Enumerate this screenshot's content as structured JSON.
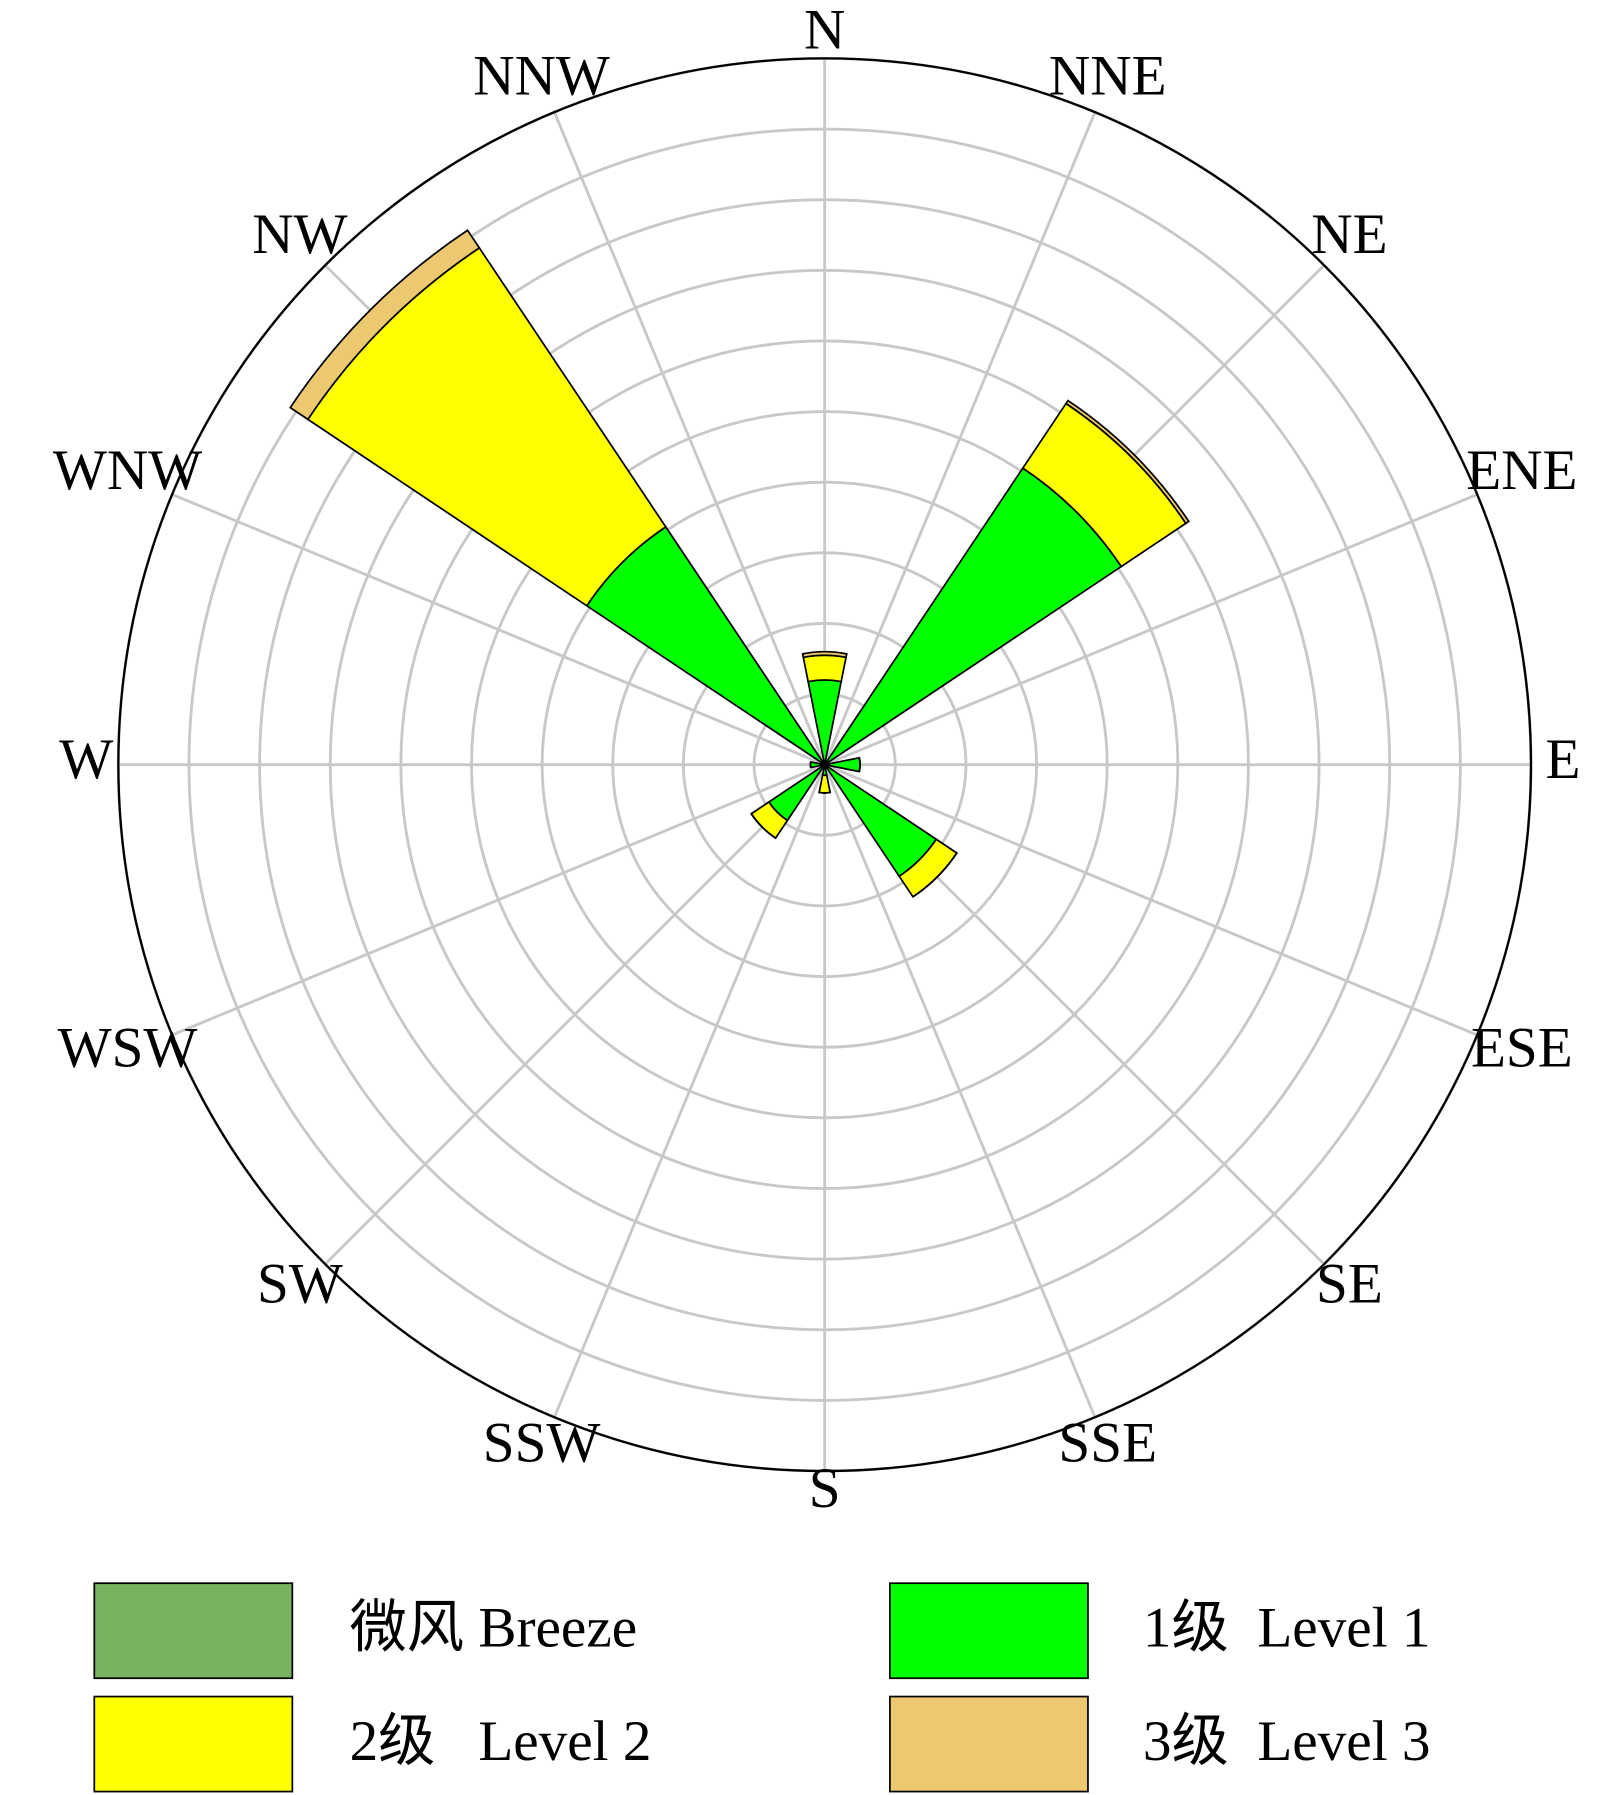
{
  "chart_data": {
    "type": "windrose",
    "categories": [
      "N",
      "NNE",
      "NE",
      "ENE",
      "E",
      "ESE",
      "SE",
      "SSE",
      "S",
      "SSW",
      "SW",
      "WSW",
      "W",
      "WNW",
      "NW",
      "NNW"
    ],
    "series": [
      {
        "name": "微风 Breeze",
        "color": "#77b360",
        "values": [
          0.05,
          0,
          0.05,
          0,
          0.05,
          0,
          0.05,
          0,
          0.05,
          0,
          0.05,
          0,
          0.05,
          0,
          0.05,
          0
        ]
      },
      {
        "name": "1级  Level 1",
        "color": "#00ff00",
        "values": [
          1.15,
          0,
          5.0,
          0,
          0.45,
          0,
          1.85,
          0,
          0.1,
          0,
          0.9,
          0,
          0.15,
          0,
          4.0,
          0
        ]
      },
      {
        "name": "2级   Level 2",
        "color": "#ffff00",
        "values": [
          0.35,
          0,
          1.1,
          0,
          0,
          0,
          0.35,
          0,
          0.25,
          0,
          0.3,
          0,
          0,
          0,
          4.75,
          0
        ]
      },
      {
        "name": "3级  Level 3",
        "color": "#ecc870",
        "values": [
          0.05,
          0,
          0.05,
          0,
          0,
          0,
          0,
          0,
          0,
          0,
          0,
          0,
          0,
          0,
          0.3,
          0
        ]
      }
    ],
    "ylim": [
      0,
      10
    ],
    "yticks": [
      1,
      2,
      3,
      4,
      5,
      6,
      7,
      8,
      9,
      10
    ],
    "grid": true
  }
}
